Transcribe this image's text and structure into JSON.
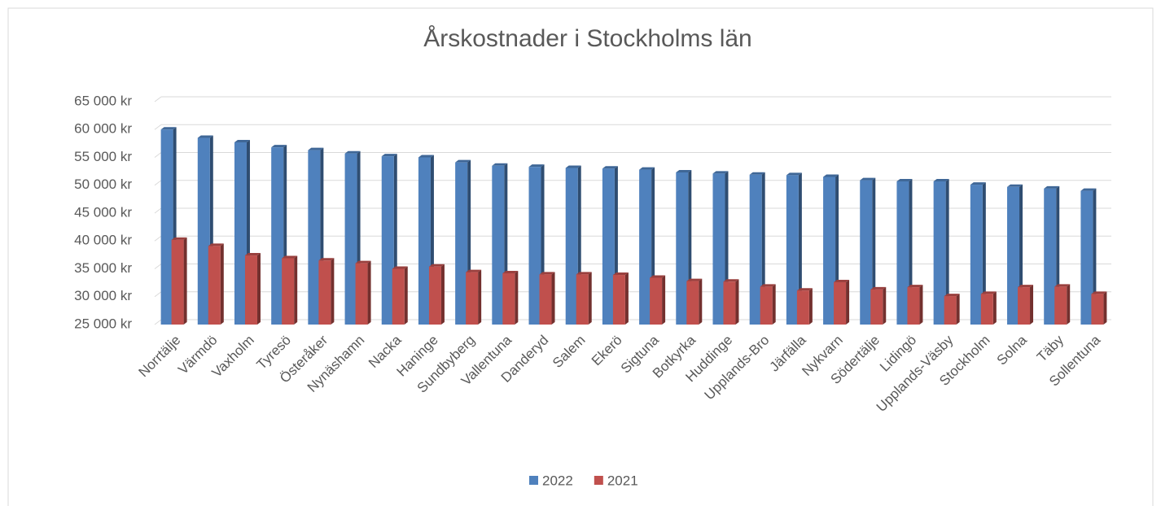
{
  "chart_data": {
    "type": "bar",
    "title": "Årskostnader i Stockholms län",
    "categories": [
      "Norrtälje",
      "Värmdö",
      "Vaxholm",
      "Tyresö",
      "Österåker",
      "Nynäshamn",
      "Nacka",
      "Haninge",
      "Sundbyberg",
      "Vallentuna",
      "Danderyd",
      "Salem",
      "Ekerö",
      "Sigtuna",
      "Botkyrka",
      "Huddinge",
      "Upplands-Bro",
      "Järfälla",
      "Nykvarn",
      "Södertälje",
      "Lidingö",
      "Upplands-Väsby",
      "Stockholm",
      "Solna",
      "Täby",
      "Sollentuna"
    ],
    "series": [
      {
        "name": "2022",
        "color": "#4f81bd",
        "values": [
          60000,
          58500,
          57700,
          56800,
          56300,
          55700,
          55200,
          55000,
          54100,
          53500,
          53300,
          53100,
          53000,
          52800,
          52300,
          52100,
          51900,
          51800,
          51500,
          50900,
          50700,
          50700,
          50100,
          49700,
          49400,
          49000
        ]
      },
      {
        "name": "2021",
        "color": "#c0504d",
        "values": [
          40200,
          39100,
          37400,
          36900,
          36500,
          36000,
          35000,
          35400,
          34400,
          34200,
          34000,
          34000,
          33900,
          33400,
          32800,
          32700,
          31800,
          31100,
          32600,
          31300,
          31700,
          30100,
          30500,
          31700,
          31800,
          30500
        ]
      }
    ],
    "ylim": [
      25000,
      65000
    ],
    "yticks": [
      {
        "value": 25000,
        "label": "25 000 kr"
      },
      {
        "value": 30000,
        "label": "30 000 kr"
      },
      {
        "value": 35000,
        "label": "35 000 kr"
      },
      {
        "value": 40000,
        "label": "40 000 kr"
      },
      {
        "value": 45000,
        "label": "45 000 kr"
      },
      {
        "value": 50000,
        "label": "50 000 kr"
      },
      {
        "value": 55000,
        "label": "55 000 kr"
      },
      {
        "value": 60000,
        "label": "60 000 kr"
      },
      {
        "value": 65000,
        "label": "65 000 kr"
      }
    ],
    "grid": true,
    "legend": "bottom"
  }
}
